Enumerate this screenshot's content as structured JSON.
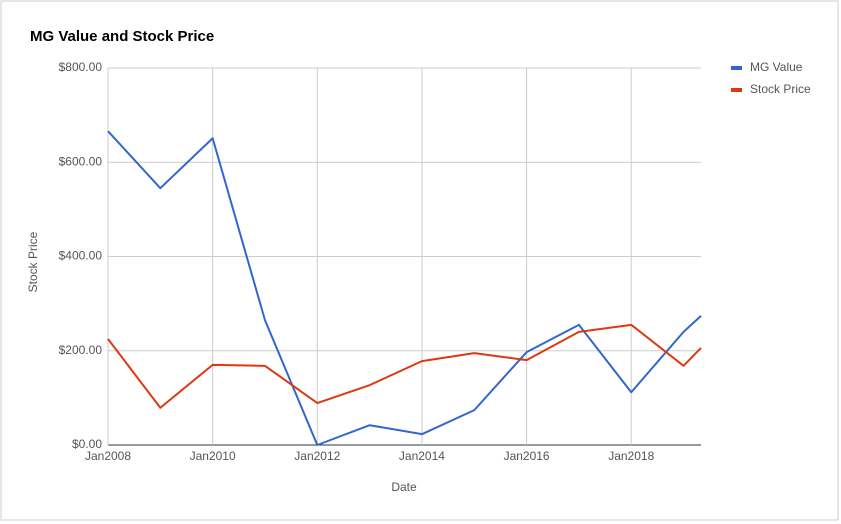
{
  "chart_data": {
    "type": "line",
    "title": "MG Value and Stock Price",
    "x": [
      "2008-01",
      "2009-01",
      "2010-01",
      "2011-01",
      "2012-01",
      "2013-01",
      "2014-01",
      "2015-01",
      "2016-01",
      "2017-01",
      "2018-01",
      "2019-01",
      "2019-05"
    ],
    "series": [
      {
        "name": "MG Value",
        "color": "#3366cc",
        "values": [
          666,
          545,
          651,
          265,
          0,
          42,
          23,
          74,
          197,
          255,
          112,
          240,
          274
        ]
      },
      {
        "name": "Stock Price",
        "color": "#dc3912",
        "values": [
          225,
          79,
          170,
          168,
          89,
          127,
          178,
          195,
          180,
          240,
          255,
          168,
          206
        ]
      }
    ],
    "xlim": [
      "2008-01",
      "2019-05"
    ],
    "xticks": [
      {
        "value": "2008-01",
        "label": "Jan2008"
      },
      {
        "value": "2010-01",
        "label": "Jan2010"
      },
      {
        "value": "2012-01",
        "label": "Jan2012"
      },
      {
        "value": "2014-01",
        "label": "Jan2014"
      },
      {
        "value": "2016-01",
        "label": "Jan2016"
      },
      {
        "value": "2018-01",
        "label": "Jan2018"
      }
    ],
    "ylim": [
      0,
      800
    ],
    "yticks": [
      {
        "value": 0,
        "label": "$0.00"
      },
      {
        "value": 200,
        "label": "$200.00"
      },
      {
        "value": 400,
        "label": "$400.00"
      },
      {
        "value": 600,
        "label": "$600.00"
      },
      {
        "value": 800,
        "label": "$800.00"
      }
    ],
    "xlabel": "Date",
    "ylabel": "Stock Price",
    "grid": true,
    "legend": "right"
  }
}
